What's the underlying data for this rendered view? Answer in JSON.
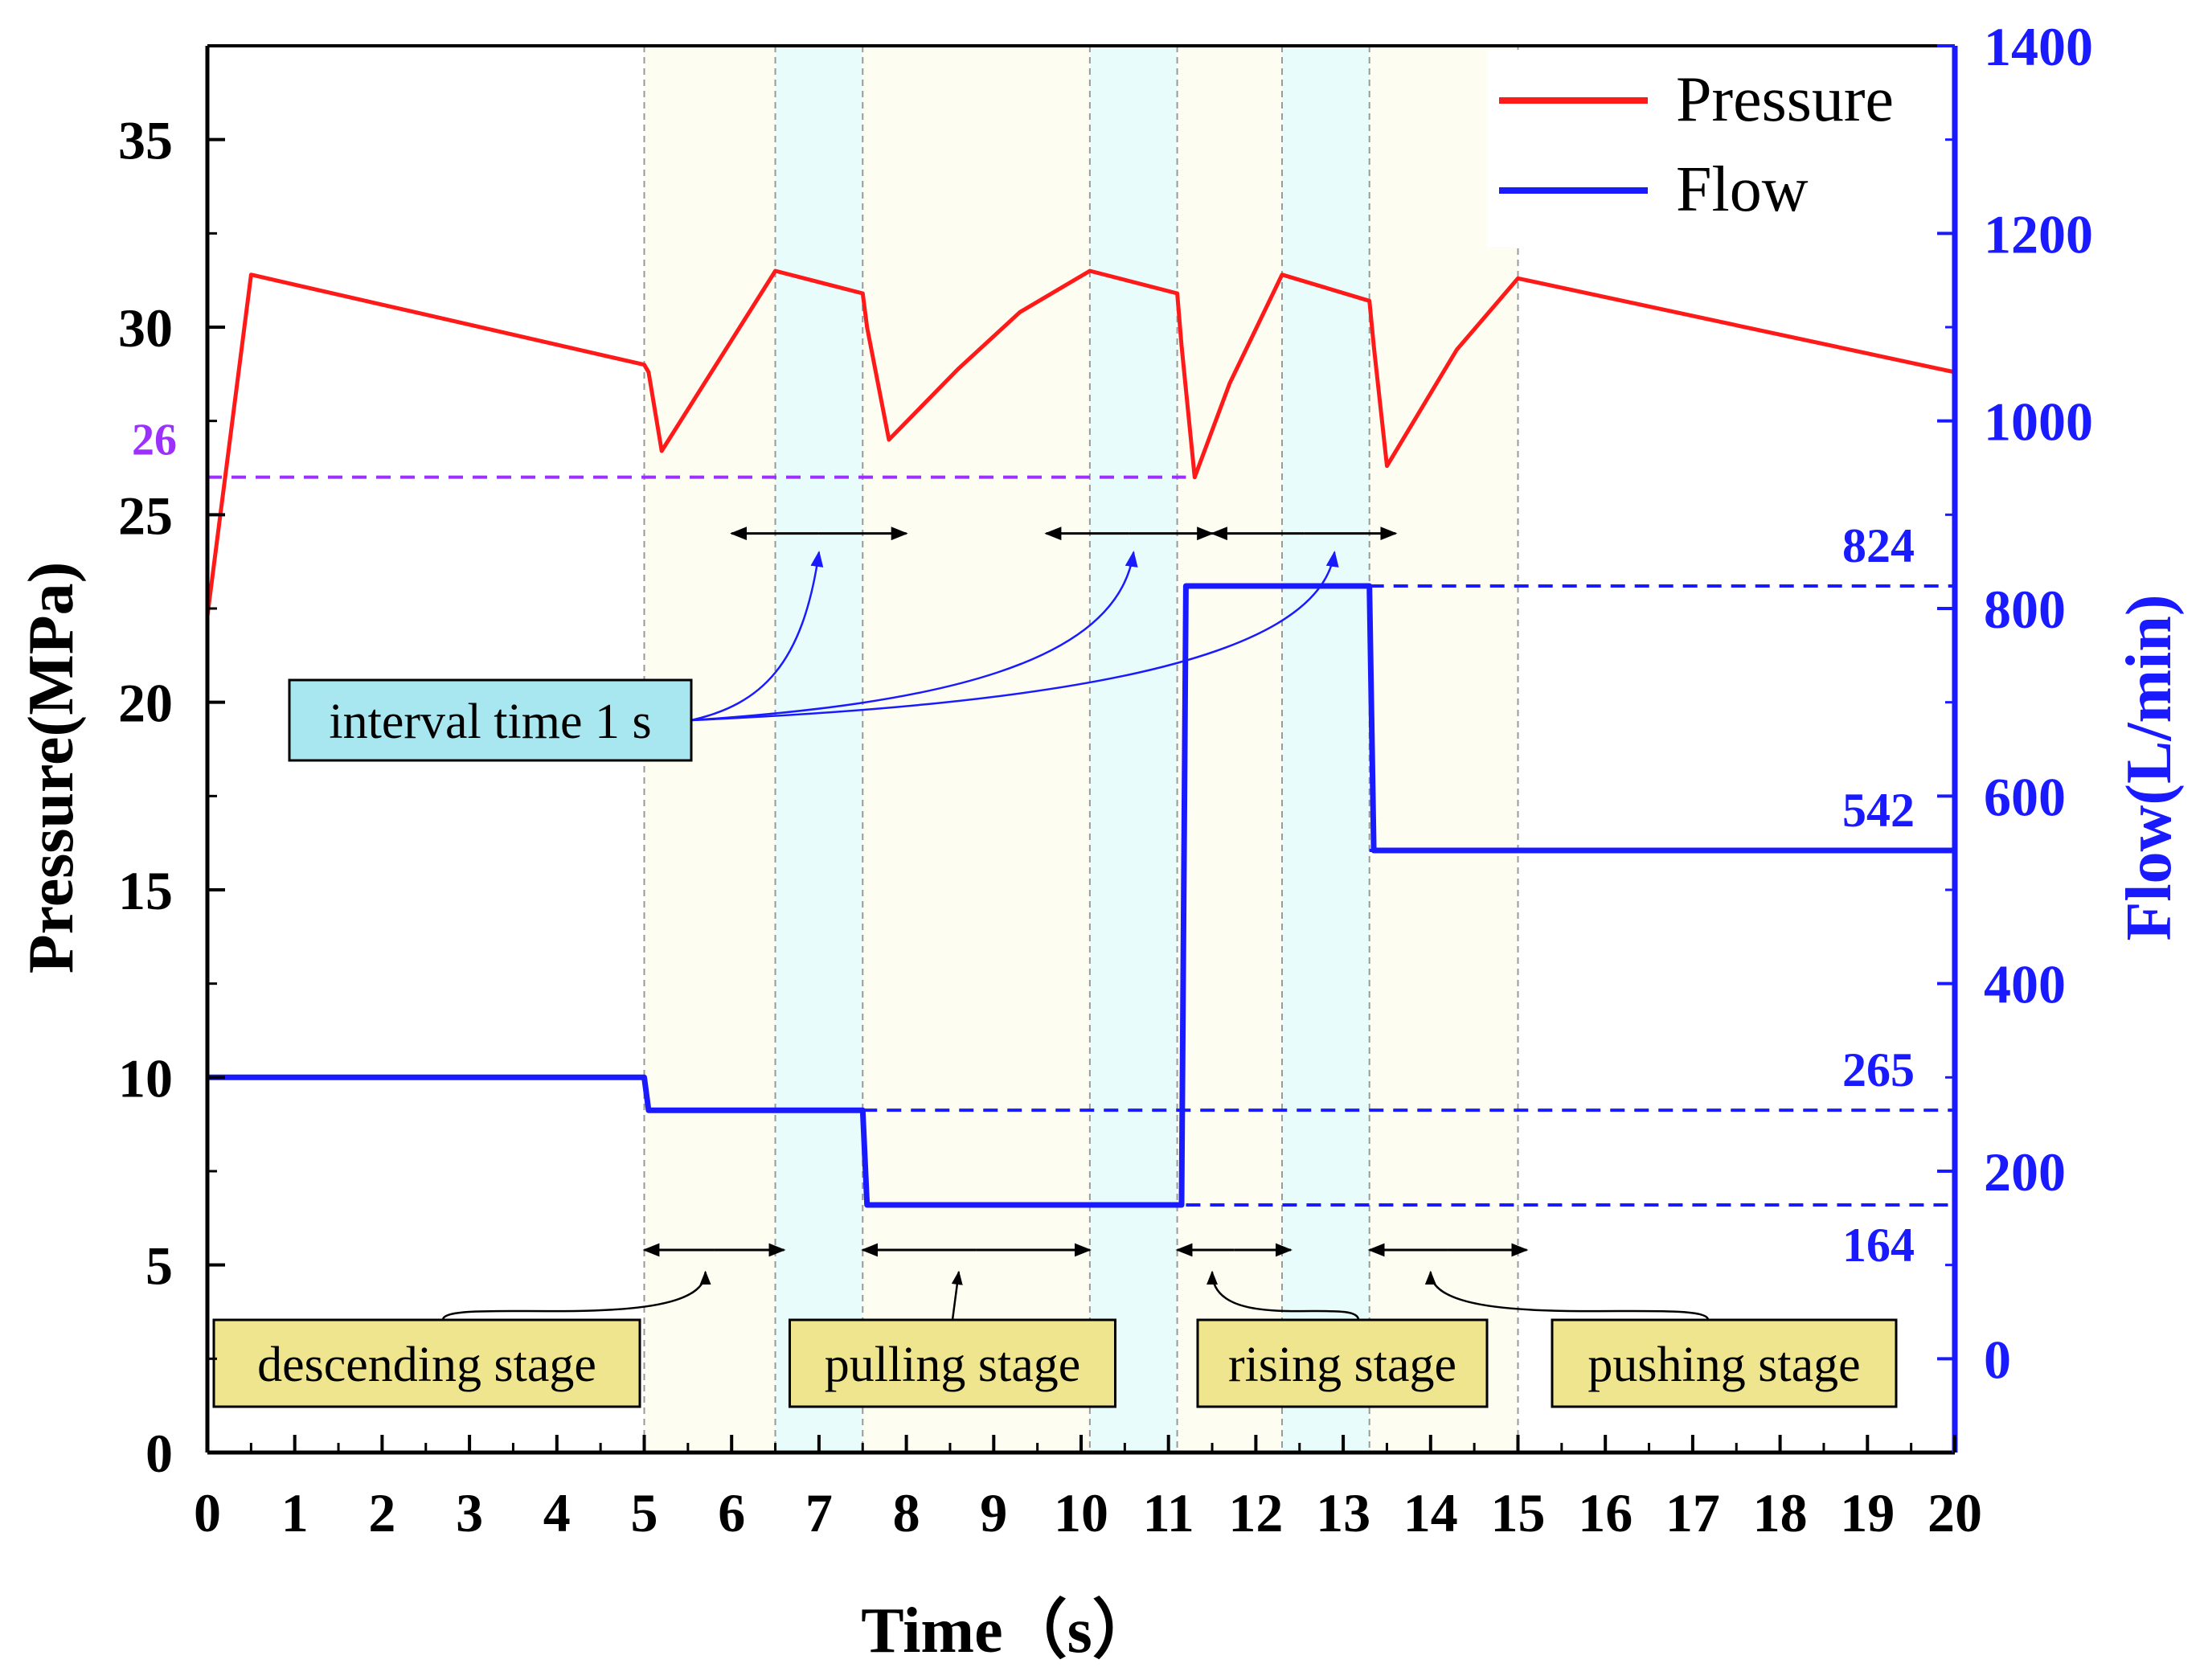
{
  "chart_data": {
    "type": "line",
    "x_axis": {
      "label": "Time（s）",
      "range": [
        0,
        20
      ],
      "ticks": [
        "0",
        "1",
        "2",
        "3",
        "4",
        "5",
        "6",
        "7",
        "8",
        "9",
        "10",
        "11",
        "12",
        "13",
        "14",
        "15",
        "16",
        "17",
        "18",
        "19",
        "20"
      ]
    },
    "y_left": {
      "label": "Pressure(MPa)",
      "range": [
        0,
        37.5
      ],
      "ticks": [
        "0",
        "5",
        "10",
        "15",
        "20",
        "25",
        "30",
        "35"
      ]
    },
    "y_right": {
      "label": "Flow(L/min)",
      "range": [
        -100,
        1400
      ],
      "ticks": [
        "0",
        "200",
        "400",
        "600",
        "800",
        "1000",
        "1200",
        "1400"
      ]
    },
    "legend": {
      "position": "top-right",
      "entries": [
        {
          "name": "Pressure",
          "color": "#ff1a1a"
        },
        {
          "name": "Flow",
          "color": "#1a1aff"
        }
      ]
    },
    "series": [
      {
        "name": "Pressure",
        "axis": "left",
        "color": "#ff1a1a",
        "x": [
          0,
          0.5,
          5.0,
          5.05,
          5.2,
          6.5,
          7.5,
          7.55,
          7.8,
          8.6,
          9.3,
          10.1,
          11.1,
          11.15,
          11.3,
          11.7,
          12.3,
          13.3,
          13.35,
          13.5,
          14.3,
          15.0,
          20
        ],
        "y": [
          22.3,
          31.4,
          29.0,
          28.8,
          26.7,
          31.5,
          30.9,
          30.0,
          27.0,
          28.9,
          30.4,
          31.5,
          30.9,
          29.5,
          26.0,
          28.5,
          31.4,
          30.7,
          29.5,
          26.3,
          29.4,
          31.3,
          28.8
        ]
      },
      {
        "name": "Flow",
        "axis": "right",
        "color": "#1a1aff",
        "x": [
          0,
          5.0,
          5.05,
          7.5,
          7.55,
          11.15,
          11.2,
          13.3,
          13.35,
          20
        ],
        "y": [
          300,
          300,
          265,
          265,
          164,
          164,
          824,
          824,
          542,
          542
        ]
      }
    ],
    "reference_lines": [
      {
        "axis": "left",
        "value": 26,
        "label": "26",
        "color": "#9b30ff",
        "from_x": 0,
        "to_x": 11.2
      },
      {
        "axis": "right",
        "value": 824,
        "label": "824",
        "color": "#1a1aff",
        "from_x": 13.3,
        "to_x": 20
      },
      {
        "axis": "right",
        "value": 542,
        "label": "542",
        "color": "#1a1aff",
        "from_x": 13.3,
        "to_x": 20
      },
      {
        "axis": "right",
        "value": 265,
        "label": "265",
        "color": "#1a1aff",
        "from_x": 7.5,
        "to_x": 20
      },
      {
        "axis": "right",
        "value": 164,
        "label": "164",
        "color": "#1a1aff",
        "from_x": 11.2,
        "to_x": 20
      }
    ],
    "shaded_regions": [
      {
        "x0": 5.0,
        "x1": 6.5,
        "color": "#fdfdf2"
      },
      {
        "x0": 6.5,
        "x1": 7.5,
        "color": "#e8fdfb"
      },
      {
        "x0": 7.5,
        "x1": 10.1,
        "color": "#fdfdf2"
      },
      {
        "x0": 10.1,
        "x1": 11.1,
        "color": "#e8fdfb"
      },
      {
        "x0": 11.1,
        "x1": 12.3,
        "color": "#fdfdf2"
      },
      {
        "x0": 12.3,
        "x1": 13.3,
        "color": "#e8fdfb"
      },
      {
        "x0": 13.3,
        "x1": 15.0,
        "color": "#fdfdf2"
      }
    ],
    "gridlines_x": [
      5.0,
      6.5,
      7.5,
      10.1,
      11.1,
      12.3,
      13.3,
      15.0
    ],
    "interval_arrows": [
      {
        "x0": 6.0,
        "x1": 8.0,
        "y": 24.5
      },
      {
        "x0": 9.6,
        "x1": 11.5,
        "y": 24.5
      },
      {
        "x0": 11.5,
        "x1": 13.6,
        "y": 24.5
      }
    ],
    "stage_arrows": [
      {
        "x0": 5.0,
        "x1": 6.6,
        "y": 5.4
      },
      {
        "x0": 7.5,
        "x1": 10.1,
        "y": 5.4
      },
      {
        "x0": 11.1,
        "x1": 12.4,
        "y": 5.4
      },
      {
        "x0": 13.3,
        "x1": 15.1,
        "y": 5.4
      }
    ],
    "annotations": [
      {
        "text": "interval time 1 s",
        "box_color": "#a8e6f0",
        "targets": [
          [
            7.0,
            24.0
          ],
          [
            10.6,
            24.0
          ],
          [
            12.9,
            24.0
          ]
        ]
      },
      {
        "text": "descending stage",
        "box_color": "#efe58f",
        "target": [
          5.7,
          5.2
        ]
      },
      {
        "text": "pulling stage",
        "box_color": "#efe58f",
        "target": [
          8.6,
          5.2
        ]
      },
      {
        "text": "rising stage",
        "box_color": "#efe58f",
        "target": [
          11.5,
          5.2
        ]
      },
      {
        "text": "pushing stage",
        "box_color": "#efe58f",
        "target": [
          14.0,
          5.2
        ]
      }
    ]
  }
}
